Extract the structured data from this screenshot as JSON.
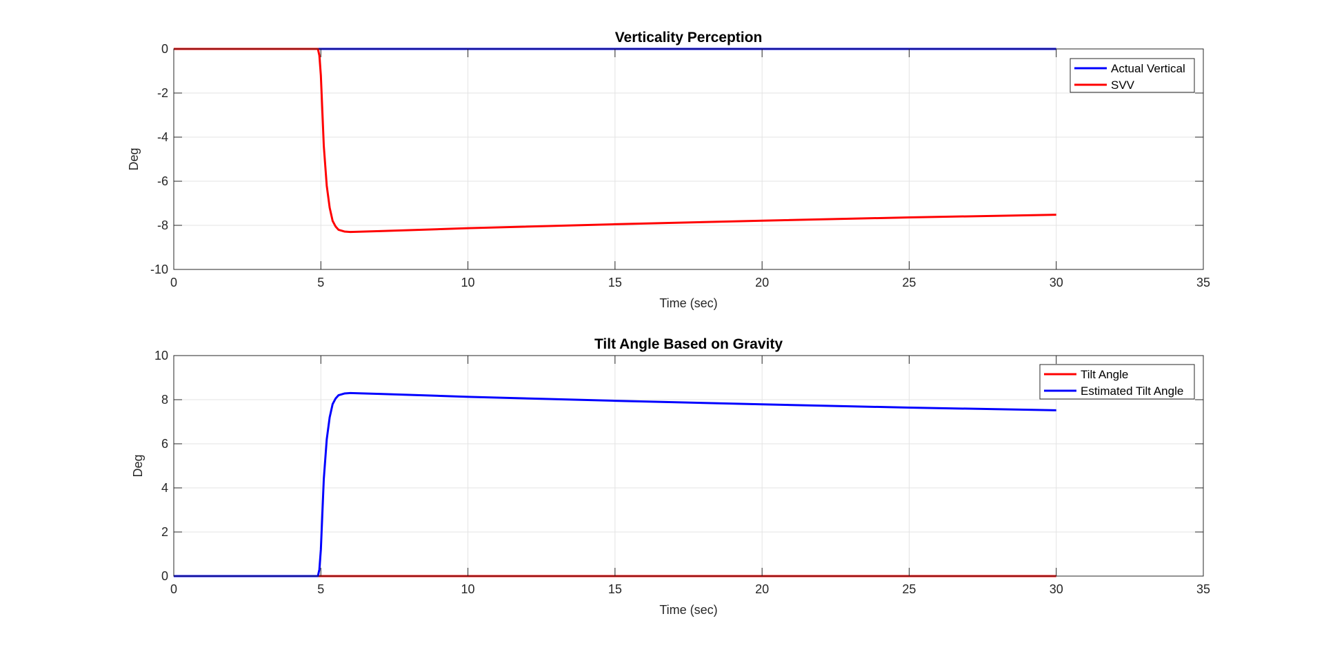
{
  "chart_data": [
    {
      "type": "line",
      "title": "Verticality Perception",
      "xlabel": "Time (sec)",
      "ylabel": "Deg",
      "xlim": [
        0,
        35
      ],
      "ylim": [
        -10,
        0
      ],
      "xticks": [
        0,
        5,
        10,
        15,
        20,
        25,
        30,
        35
      ],
      "yticks": [
        -10,
        -8,
        -6,
        -4,
        -2,
        0
      ],
      "grid": true,
      "legend_position": "top-right",
      "series": [
        {
          "name": "Actual Vertical",
          "color": "#0000FF",
          "x": [
            0,
            30
          ],
          "y": [
            0,
            0
          ]
        },
        {
          "name": "SVV",
          "color": "#FF0000",
          "x": [
            0,
            4.9,
            4.95,
            5.0,
            5.05,
            5.1,
            5.2,
            5.3,
            5.4,
            5.5,
            5.6,
            5.8,
            6.0,
            6.5,
            7,
            8,
            10,
            15,
            20,
            25,
            30
          ],
          "y": [
            0,
            0,
            -0.3,
            -1.2,
            -2.8,
            -4.4,
            -6.2,
            -7.2,
            -7.8,
            -8.05,
            -8.2,
            -8.28,
            -8.3,
            -8.28,
            -8.26,
            -8.22,
            -8.13,
            -7.95,
            -7.79,
            -7.64,
            -7.52
          ]
        }
      ]
    },
    {
      "type": "line",
      "title": "Tilt Angle Based on Gravity",
      "xlabel": "Time (sec)",
      "ylabel": "Deg",
      "xlim": [
        0,
        35
      ],
      "ylim": [
        0,
        10
      ],
      "xticks": [
        0,
        5,
        10,
        15,
        20,
        25,
        30,
        35
      ],
      "yticks": [
        0,
        2,
        4,
        6,
        8,
        10
      ],
      "grid": true,
      "legend_position": "top-right",
      "series": [
        {
          "name": "Tilt Angle",
          "color": "#FF0000",
          "x": [
            0,
            30
          ],
          "y": [
            0,
            0
          ]
        },
        {
          "name": "Estimated Tilt Angle",
          "color": "#0000FF",
          "x": [
            0,
            4.9,
            4.95,
            5.0,
            5.05,
            5.1,
            5.2,
            5.3,
            5.4,
            5.5,
            5.6,
            5.8,
            6.0,
            6.5,
            7,
            8,
            10,
            15,
            20,
            25,
            30
          ],
          "y": [
            0,
            0,
            0.3,
            1.2,
            2.8,
            4.4,
            6.2,
            7.2,
            7.8,
            8.05,
            8.2,
            8.28,
            8.3,
            8.28,
            8.26,
            8.22,
            8.13,
            7.95,
            7.79,
            7.64,
            7.52
          ]
        }
      ]
    }
  ]
}
